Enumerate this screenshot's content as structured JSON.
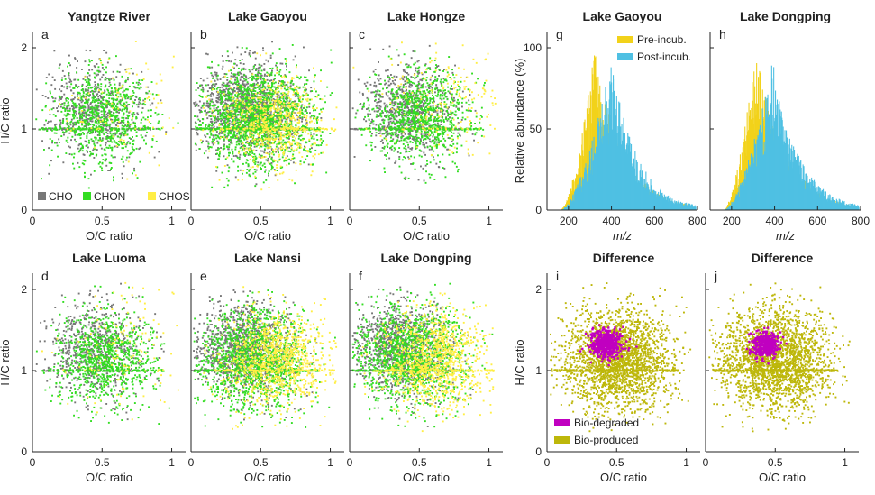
{
  "figure": {
    "colors": {
      "CHO": "#777777",
      "CHON": "#33dd22",
      "CHOS": "#ffee44",
      "pre": "#f2d21a",
      "post": "#4fc0e3",
      "degraded": "#c000c0",
      "produced": "#bdb70a"
    }
  },
  "chart_data": [
    {
      "id": "a",
      "type": "scatter",
      "letter": "a",
      "title": "Yangtze River",
      "xlabel": "O/C ratio",
      "ylabel": "H/C ratio",
      "xlim": [
        0,
        1.1
      ],
      "ylim": [
        0,
        2.2
      ],
      "xticks": [
        "0",
        "0.5",
        "1"
      ],
      "yticks": [
        "0",
        "1",
        "2"
      ],
      "legend": [
        "CHO",
        "CHON",
        "CHOS"
      ],
      "series": [
        {
          "name": "CHO",
          "center": [
            0.45,
            1.25
          ],
          "spread": [
            0.17,
            0.28
          ],
          "count": 650
        },
        {
          "name": "CHON",
          "center": [
            0.5,
            1.15
          ],
          "spread": [
            0.18,
            0.28
          ],
          "count": 900
        },
        {
          "name": "CHOS",
          "center": [
            0.7,
            1.3
          ],
          "spread": [
            0.2,
            0.4
          ],
          "count": 110
        }
      ]
    },
    {
      "id": "b",
      "type": "scatter",
      "letter": "b",
      "title": "Lake Gaoyou",
      "xlabel": "O/C ratio",
      "ylabel": "",
      "xlim": [
        0,
        1.1
      ],
      "ylim": [
        0,
        2.2
      ],
      "xticks": [
        "0",
        "0.5",
        "1"
      ],
      "yticks": [],
      "series": [
        {
          "name": "CHO",
          "center": [
            0.4,
            1.25
          ],
          "spread": [
            0.18,
            0.28
          ],
          "count": 1500
        },
        {
          "name": "CHON",
          "center": [
            0.48,
            1.15
          ],
          "spread": [
            0.2,
            0.3
          ],
          "count": 1700
        },
        {
          "name": "CHOS",
          "center": [
            0.6,
            1.1
          ],
          "spread": [
            0.18,
            0.3
          ],
          "count": 750
        }
      ]
    },
    {
      "id": "c",
      "type": "scatter",
      "letter": "c",
      "title": "Lake Hongze",
      "xlabel": "O/C ratio",
      "ylabel": "",
      "xlim": [
        0,
        1.1
      ],
      "ylim": [
        0,
        2.2
      ],
      "xticks": [
        "0",
        "0.5",
        "1"
      ],
      "yticks": [],
      "series": [
        {
          "name": "CHO",
          "center": [
            0.42,
            1.25
          ],
          "spread": [
            0.16,
            0.26
          ],
          "count": 800
        },
        {
          "name": "CHON",
          "center": [
            0.5,
            1.15
          ],
          "spread": [
            0.18,
            0.28
          ],
          "count": 1000
        },
        {
          "name": "CHOS",
          "center": [
            0.7,
            1.4
          ],
          "spread": [
            0.22,
            0.35
          ],
          "count": 220
        }
      ]
    },
    {
      "id": "d",
      "type": "scatter",
      "letter": "d",
      "title": "Lake Luoma",
      "xlabel": "O/C ratio",
      "ylabel": "H/C ratio",
      "xlim": [
        0,
        1.1
      ],
      "ylim": [
        0,
        2.2
      ],
      "xticks": [
        "0",
        "0.5",
        "1"
      ],
      "yticks": [
        "0",
        "1",
        "2"
      ],
      "series": [
        {
          "name": "CHO",
          "center": [
            0.45,
            1.3
          ],
          "spread": [
            0.17,
            0.28
          ],
          "count": 700
        },
        {
          "name": "CHON",
          "center": [
            0.52,
            1.15
          ],
          "spread": [
            0.18,
            0.3
          ],
          "count": 1000
        },
        {
          "name": "CHOS",
          "center": [
            0.65,
            1.3
          ],
          "spread": [
            0.2,
            0.4
          ],
          "count": 140
        }
      ]
    },
    {
      "id": "e",
      "type": "scatter",
      "letter": "e",
      "title": "Lake Nansi",
      "xlabel": "O/C ratio",
      "ylabel": "",
      "xlim": [
        0,
        1.1
      ],
      "ylim": [
        0,
        2.2
      ],
      "xticks": [
        "0",
        "0.5",
        "1"
      ],
      "yticks": [],
      "series": [
        {
          "name": "CHO",
          "center": [
            0.38,
            1.3
          ],
          "spread": [
            0.17,
            0.27
          ],
          "count": 1300
        },
        {
          "name": "CHON",
          "center": [
            0.46,
            1.15
          ],
          "spread": [
            0.19,
            0.3
          ],
          "count": 1500
        },
        {
          "name": "CHOS",
          "center": [
            0.62,
            1.15
          ],
          "spread": [
            0.18,
            0.3
          ],
          "count": 1100
        }
      ]
    },
    {
      "id": "f",
      "type": "scatter",
      "letter": "f",
      "title": "Lake Dongping",
      "xlabel": "O/C ratio",
      "ylabel": "",
      "xlim": [
        0,
        1.1
      ],
      "ylim": [
        0,
        2.2
      ],
      "xticks": [
        "0",
        "0.5",
        "1"
      ],
      "yticks": [],
      "series": [
        {
          "name": "CHO",
          "center": [
            0.36,
            1.3
          ],
          "spread": [
            0.16,
            0.27
          ],
          "count": 1200
        },
        {
          "name": "CHON",
          "center": [
            0.44,
            1.2
          ],
          "spread": [
            0.19,
            0.3
          ],
          "count": 1500
        },
        {
          "name": "CHOS",
          "center": [
            0.62,
            1.15
          ],
          "spread": [
            0.18,
            0.3
          ],
          "count": 1100
        }
      ]
    },
    {
      "id": "g",
      "type": "bar",
      "letter": "g",
      "title": "Lake Gaoyou",
      "xlabel": "m/z",
      "ylabel": "Relative abundance (%)",
      "xlim": [
        100,
        800
      ],
      "ylim": [
        0,
        110
      ],
      "xticks": [
        "200",
        "400",
        "600",
        "800"
      ],
      "yticks": [
        "0",
        "50",
        "100"
      ],
      "legend": [
        "Pre-incub.",
        "Post-incub."
      ],
      "series": [
        {
          "name": "Pre-incub.",
          "start": 160,
          "peak": 320,
          "end": 760,
          "max": 100
        },
        {
          "name": "Post-incub.",
          "start": 160,
          "peak": 400,
          "end": 790,
          "max": 95
        }
      ]
    },
    {
      "id": "h",
      "type": "bar",
      "letter": "h",
      "title": "Lake Dongping",
      "xlabel": "m/z",
      "ylabel": "",
      "xlim": [
        100,
        800
      ],
      "ylim": [
        0,
        110
      ],
      "xticks": [
        "200",
        "400",
        "600",
        "800"
      ],
      "yticks": [],
      "series": [
        {
          "name": "Pre-incub.",
          "start": 160,
          "peak": 310,
          "end": 760,
          "max": 100
        },
        {
          "name": "Post-incub.",
          "start": 160,
          "peak": 390,
          "end": 790,
          "max": 95
        }
      ]
    },
    {
      "id": "i",
      "type": "scatter",
      "letter": "i",
      "title": "Difference",
      "xlabel": "O/C ratio",
      "ylabel": "H/C ratio",
      "xlim": [
        0,
        1.1
      ],
      "ylim": [
        0,
        2.2
      ],
      "xticks": [
        "0",
        "0.5",
        "1"
      ],
      "yticks": [
        "0",
        "1",
        "2"
      ],
      "legend": [
        "Bio-degraded",
        "Bio-produced"
      ],
      "series": [
        {
          "name": "Bio-produced",
          "center": [
            0.5,
            1.15
          ],
          "spread": [
            0.19,
            0.3
          ],
          "count": 2600
        },
        {
          "name": "Bio-degraded",
          "center": [
            0.43,
            1.32
          ],
          "spread": [
            0.06,
            0.09
          ],
          "count": 450
        }
      ]
    },
    {
      "id": "j",
      "type": "scatter",
      "letter": "j",
      "title": "Difference",
      "xlabel": "O/C ratio",
      "ylabel": "",
      "xlim": [
        0,
        1.1
      ],
      "ylim": [
        0,
        2.2
      ],
      "xticks": [
        "0",
        "0.5",
        "1"
      ],
      "yticks": [],
      "series": [
        {
          "name": "Bio-produced",
          "center": [
            0.5,
            1.15
          ],
          "spread": [
            0.19,
            0.3
          ],
          "count": 2600
        },
        {
          "name": "Bio-degraded",
          "center": [
            0.43,
            1.32
          ],
          "spread": [
            0.05,
            0.08
          ],
          "count": 380
        }
      ]
    }
  ]
}
